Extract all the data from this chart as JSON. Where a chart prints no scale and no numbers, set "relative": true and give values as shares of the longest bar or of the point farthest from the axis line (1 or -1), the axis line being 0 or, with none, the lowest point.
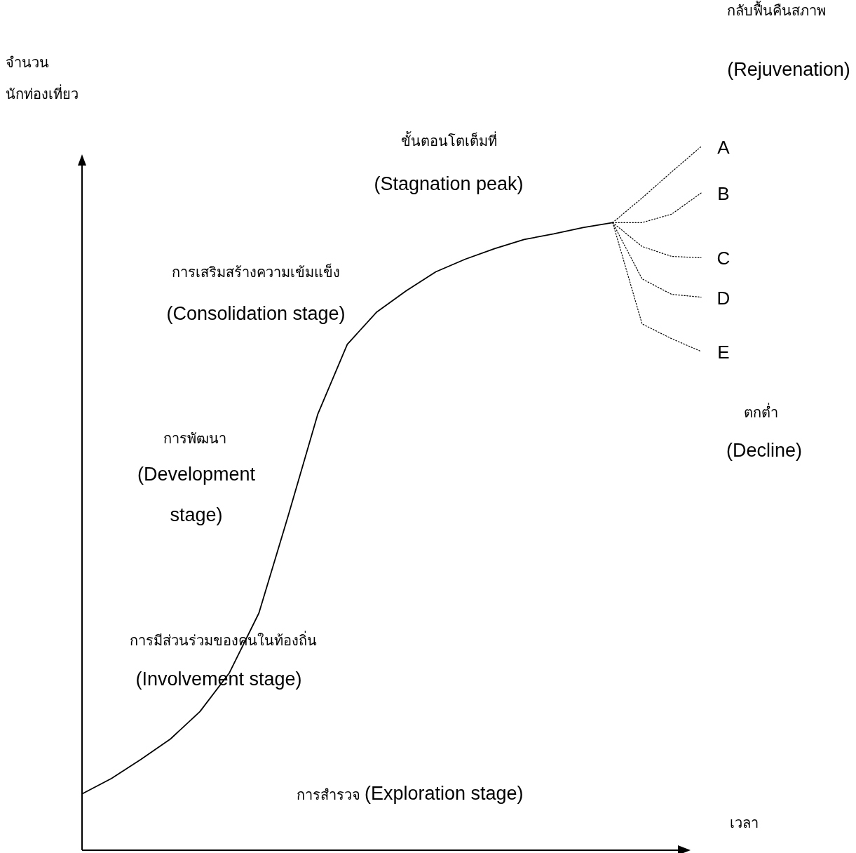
{
  "chart_data": {
    "type": "line",
    "relative": true,
    "xlabel": "เวลา",
    "ylabel": "จำนวน นักท่องเที่ยว",
    "annotations": [
      "กลับฟื้นคืนสภาพ",
      "(Rejuvenation)",
      "ขั้นตอนโตเต็มที่",
      "(Stagnation peak)",
      "การเสริมสร้างความเข้มแข็ง",
      "(Consolidation stage)",
      "การพัฒนา",
      "(Development stage)",
      "การมีส่วนร่วมของคนในท้องถิ่น",
      "(Involvement stage)",
      "การสำรวจ (Exploration stage)",
      "ตกต่ำ",
      "(Decline)"
    ],
    "categories": [
      null,
      null,
      null,
      null,
      null,
      null,
      null,
      null,
      null,
      null,
      null,
      null,
      null,
      null,
      null,
      null,
      null,
      null,
      null,
      null,
      null,
      null
    ],
    "series": [
      {
        "color": "#000000",
        "line_style": "solid",
        "values": [
          0.08,
          0.102,
          0.129,
          0.158,
          0.197,
          0.252,
          0.337,
          0.476,
          0.62,
          0.719,
          0.765,
          0.795,
          0.822,
          0.84,
          0.855,
          0.868,
          0.876,
          0.885,
          0.892,
          null,
          null,
          null
        ]
      },
      {
        "name": "A",
        "color": "#000000",
        "line_style": "dotted",
        "values": [
          null,
          null,
          null,
          null,
          null,
          null,
          null,
          null,
          null,
          null,
          null,
          null,
          null,
          null,
          null,
          null,
          null,
          null,
          0.892,
          0.927,
          0.964,
          1.0
        ]
      },
      {
        "name": "B",
        "color": "#000000",
        "line_style": "dotted",
        "values": [
          null,
          null,
          null,
          null,
          null,
          null,
          null,
          null,
          null,
          null,
          null,
          null,
          null,
          null,
          null,
          null,
          null,
          null,
          0.892,
          0.892,
          0.904,
          0.934
        ]
      },
      {
        "name": "C",
        "color": "#000000",
        "line_style": "dotted",
        "values": [
          null,
          null,
          null,
          null,
          null,
          null,
          null,
          null,
          null,
          null,
          null,
          null,
          null,
          null,
          null,
          null,
          null,
          null,
          0.892,
          0.858,
          0.844,
          0.842
        ]
      },
      {
        "name": "D",
        "color": "#000000",
        "line_style": "dotted",
        "values": [
          null,
          null,
          null,
          null,
          null,
          null,
          null,
          null,
          null,
          null,
          null,
          null,
          null,
          null,
          null,
          null,
          null,
          null,
          0.892,
          0.812,
          0.79,
          0.786
        ]
      },
      {
        "name": "E",
        "color": "#000000",
        "line_style": "dotted",
        "values": [
          null,
          null,
          null,
          null,
          null,
          null,
          null,
          null,
          null,
          null,
          null,
          null,
          null,
          null,
          null,
          null,
          null,
          null,
          0.892,
          0.748,
          0.727,
          0.709
        ]
      }
    ]
  }
}
